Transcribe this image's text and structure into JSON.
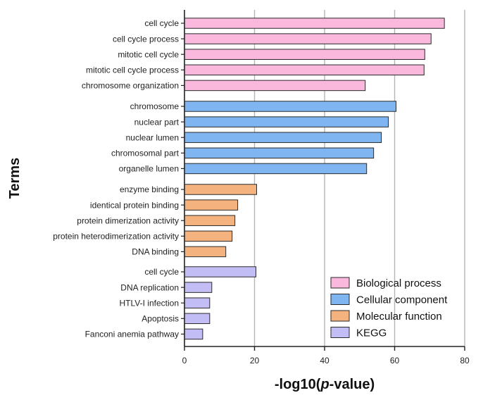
{
  "chart_data": {
    "type": "bar",
    "orientation": "horizontal",
    "xlabel_prefix": "-log10(",
    "xlabel_italic": "p",
    "xlabel_suffix": "-value)",
    "ylabel": "Terms",
    "xlim": [
      0,
      80
    ],
    "xticks": [
      0,
      20,
      40,
      60,
      80
    ],
    "grid": "vertical",
    "legend_position": "bottom-right",
    "groups": [
      {
        "name": "Biological process",
        "color": "#f9b8dc",
        "terms": [
          {
            "label": "cell cycle",
            "value": 74.2
          },
          {
            "label": "cell cycle process",
            "value": 70.4
          },
          {
            "label": "mitotic cell cycle",
            "value": 68.6
          },
          {
            "label": "mitotic cell cycle process",
            "value": 68.4
          },
          {
            "label": "chromosome organization",
            "value": 51.6
          }
        ]
      },
      {
        "name": "Cellular component",
        "color": "#7fb6f2",
        "terms": [
          {
            "label": "chromosome",
            "value": 60.4
          },
          {
            "label": "nuclear part",
            "value": 58.2
          },
          {
            "label": "nuclear lumen",
            "value": 56.2
          },
          {
            "label": "chromosomal part",
            "value": 54.0
          },
          {
            "label": "organelle lumen",
            "value": 52.0
          }
        ]
      },
      {
        "name": "Molecular function",
        "color": "#f4b27e",
        "terms": [
          {
            "label": "enzyme binding",
            "value": 20.6
          },
          {
            "label": "identical protein binding",
            "value": 15.2
          },
          {
            "label": "protein dimerization activity",
            "value": 14.4
          },
          {
            "label": "protein heterodimerization activity",
            "value": 13.6
          },
          {
            "label": "DNA binding",
            "value": 11.8
          }
        ]
      },
      {
        "name": "KEGG",
        "color": "#c3bdf6",
        "terms": [
          {
            "label": "cell cycle",
            "value": 20.4
          },
          {
            "label": "DNA replication",
            "value": 7.8
          },
          {
            "label": "HTLV-I infection",
            "value": 7.2
          },
          {
            "label": "Apoptosis",
            "value": 7.2
          },
          {
            "label": "Fanconi anemia pathway",
            "value": 5.2
          }
        ]
      }
    ]
  }
}
